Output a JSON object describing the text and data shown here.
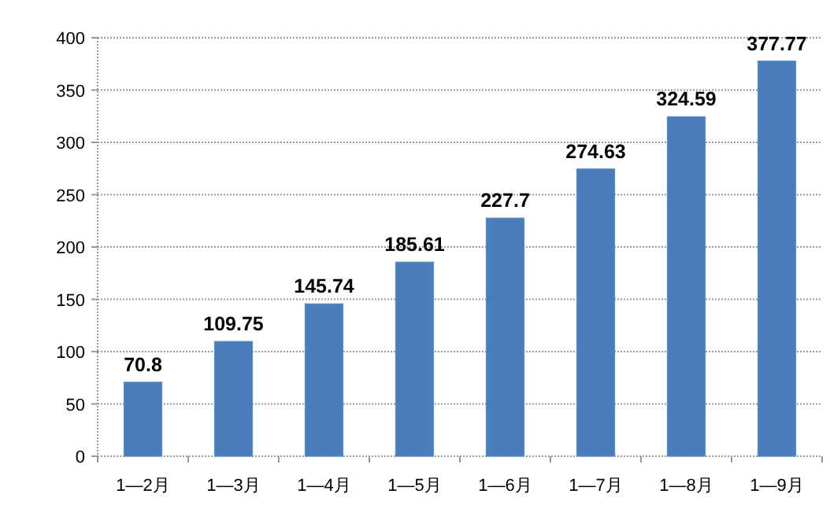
{
  "chart_data": {
    "type": "bar",
    "categories": [
      "1—2月",
      "1—3月",
      "1—4月",
      "1—5月",
      "1—6月",
      "1—7月",
      "1—8月",
      "1—9月"
    ],
    "values": [
      70.8,
      109.75,
      145.74,
      185.61,
      227.7,
      274.63,
      324.59,
      377.77
    ],
    "color": "#4a7ebb",
    "ylim": [
      0,
      400
    ],
    "yticks": [
      0,
      50,
      100,
      150,
      200,
      250,
      300,
      350,
      400
    ],
    "grid": "y",
    "data_labels": true
  }
}
